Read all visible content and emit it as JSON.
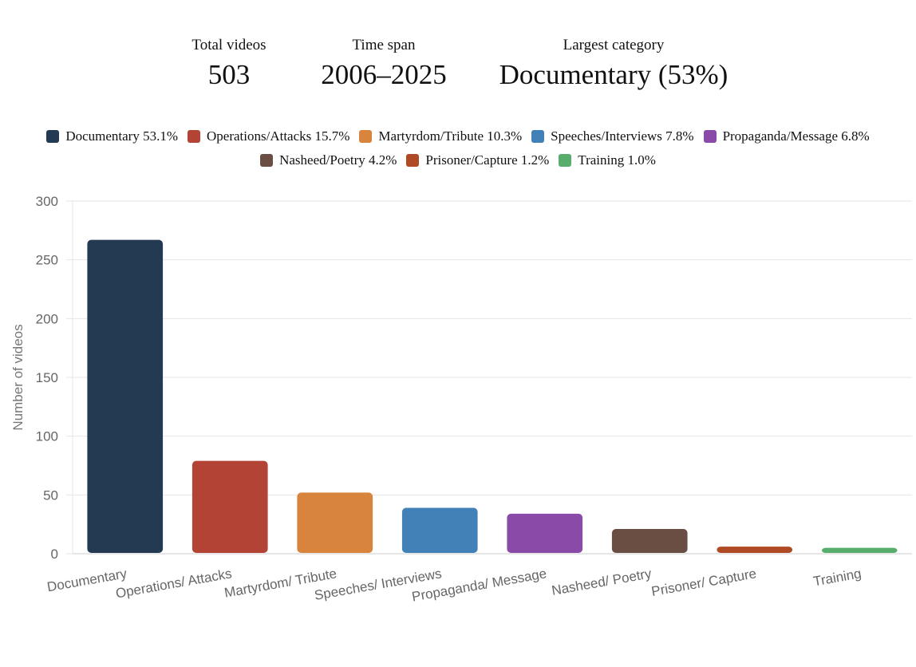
{
  "stats": [
    {
      "label": "Total videos",
      "value": "503"
    },
    {
      "label": "Time span",
      "value": "2006–2025"
    },
    {
      "label": "Largest category",
      "value": "Documentary (53%)"
    }
  ],
  "legend": [
    {
      "name": "Documentary",
      "pct": "53.1%",
      "color": "#243a52"
    },
    {
      "name": "Operations/Attacks",
      "pct": "15.7%",
      "color": "#b34435"
    },
    {
      "name": "Martyrdom/Tribute",
      "pct": "10.3%",
      "color": "#d8843c"
    },
    {
      "name": "Speeches/Interviews",
      "pct": "7.8%",
      "color": "#4280b8"
    },
    {
      "name": "Propaganda/Message",
      "pct": "6.8%",
      "color": "#8a4aa8"
    },
    {
      "name": "Nasheed/Poetry",
      "pct": "4.2%",
      "color": "#6a4e44"
    },
    {
      "name": "Prisoner/Capture",
      "pct": "1.2%",
      "color": "#b04a24"
    },
    {
      "name": "Training",
      "pct": "1.0%",
      "color": "#58ad6c"
    }
  ],
  "chart_data": {
    "type": "bar",
    "categories": [
      "Documentary",
      "Operations/ Attacks",
      "Martyrdom/ Tribute",
      "Speeches/ Interviews",
      "Propaganda/ Message",
      "Nasheed/ Poetry",
      "Prisoner/ Capture",
      "Training"
    ],
    "values": [
      267,
      79,
      52,
      39,
      34,
      21,
      6,
      5
    ],
    "colors": [
      "#243a52",
      "#b34435",
      "#d8843c",
      "#4280b8",
      "#8a4aa8",
      "#6a4e44",
      "#b04a24",
      "#58ad6c"
    ],
    "ylabel": "Number of videos",
    "xlabel": "",
    "ylim": [
      0,
      300
    ],
    "yticks": [
      0,
      50,
      100,
      150,
      200,
      250,
      300
    ],
    "grid": true,
    "legend": "top-center"
  }
}
